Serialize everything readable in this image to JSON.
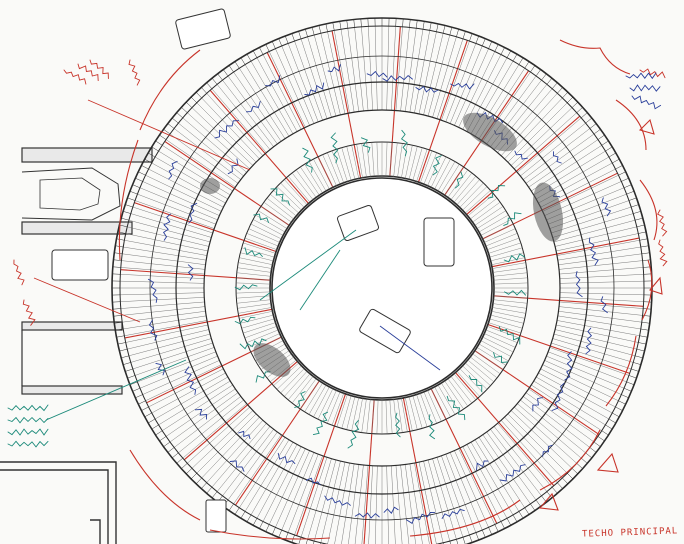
{
  "drawing": {
    "caption": "TECHO PRINCIPAL",
    "spoke_count": 120,
    "bay_count": 24,
    "colors": {
      "paper": "#fafaf8",
      "structure": "#2b2b2b",
      "hatch": "#6d6d6d",
      "red_annotation": "#c8342a",
      "blue_annotation": "#2a3f9a",
      "teal_annotation": "#1c8a7a",
      "shade": "#555555"
    }
  }
}
